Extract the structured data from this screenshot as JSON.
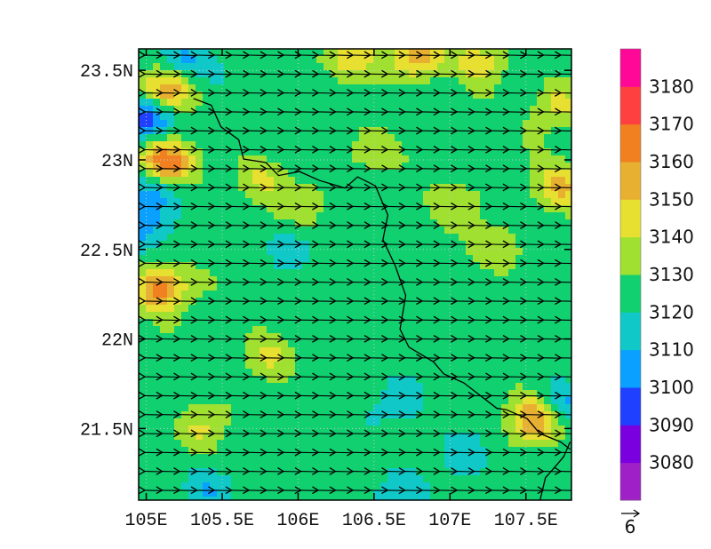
{
  "chart_data": {
    "type": "heatmap",
    "title": "",
    "xlabel": "",
    "ylabel": "",
    "xlim": [
      104.95,
      107.8
    ],
    "ylim": [
      21.1,
      23.62
    ],
    "x_ticks": [
      {
        "value": 105.0,
        "label": "105E"
      },
      {
        "value": 105.5,
        "label": "105.5E"
      },
      {
        "value": 106.0,
        "label": "106E"
      },
      {
        "value": 106.5,
        "label": "106.5E"
      },
      {
        "value": 107.0,
        "label": "107E"
      },
      {
        "value": 107.5,
        "label": "107.5E"
      }
    ],
    "y_ticks": [
      {
        "value": 21.5,
        "label": "21.5N"
      },
      {
        "value": 22.0,
        "label": "22N"
      },
      {
        "value": 22.5,
        "label": "22.5N"
      },
      {
        "value": 23.0,
        "label": "23N"
      },
      {
        "value": 23.5,
        "label": "23.5N"
      }
    ],
    "colorbar": {
      "levels": [
        3080,
        3090,
        3100,
        3110,
        3120,
        3130,
        3140,
        3150,
        3160,
        3170,
        3180
      ],
      "labels": [
        "3080",
        "3090",
        "3100",
        "3110",
        "3120",
        "3130",
        "3140",
        "3150",
        "3160",
        "3170",
        "3180"
      ],
      "colors": [
        "#a020c8",
        "#7a00e0",
        "#2040ff",
        "#0aa0ff",
        "#10c8c8",
        "#10d070",
        "#a0e030",
        "#e8e030",
        "#e8b030",
        "#f08020",
        "#ff4040",
        "#ff0898"
      ]
    },
    "field_base_value": 3125,
    "anomalies": [
      {
        "lon": 105.0,
        "lat": 23.25,
        "dv": -40
      },
      {
        "lon": 105.05,
        "lat": 22.85,
        "dv": -25
      },
      {
        "lon": 105.0,
        "lat": 22.65,
        "dv": -22
      },
      {
        "lon": 105.12,
        "lat": 22.98,
        "dv": 52
      },
      {
        "lon": 105.12,
        "lat": 23.38,
        "dv": 40
      },
      {
        "lon": 105.1,
        "lat": 22.28,
        "dv": 40
      },
      {
        "lon": 105.22,
        "lat": 23.55,
        "dv": -20
      },
      {
        "lon": 106.35,
        "lat": 23.58,
        "dv": 25
      },
      {
        "lon": 106.8,
        "lat": 23.58,
        "dv": 32
      },
      {
        "lon": 107.2,
        "lat": 23.55,
        "dv": 18
      },
      {
        "lon": 107.72,
        "lat": 22.85,
        "dv": 28
      },
      {
        "lon": 107.7,
        "lat": 23.3,
        "dv": 18
      },
      {
        "lon": 107.55,
        "lat": 21.55,
        "dv": 32
      },
      {
        "lon": 107.75,
        "lat": 21.65,
        "dv": -15
      },
      {
        "lon": 105.75,
        "lat": 22.9,
        "dv": 15
      },
      {
        "lon": 106.05,
        "lat": 22.75,
        "dv": 15
      },
      {
        "lon": 106.5,
        "lat": 23.05,
        "dv": 15
      },
      {
        "lon": 105.8,
        "lat": 21.9,
        "dv": 14
      },
      {
        "lon": 105.35,
        "lat": 21.5,
        "dv": 15
      },
      {
        "lon": 107.0,
        "lat": 22.75,
        "dv": 14
      },
      {
        "lon": 107.3,
        "lat": 22.5,
        "dv": 14
      },
      {
        "lon": 106.7,
        "lat": 21.65,
        "dv": -12
      },
      {
        "lon": 107.1,
        "lat": 21.35,
        "dv": -12
      },
      {
        "lon": 105.95,
        "lat": 22.5,
        "dv": -10
      },
      {
        "lon": 105.4,
        "lat": 21.15,
        "dv": -12
      },
      {
        "lon": 106.6,
        "lat": 21.15,
        "dv": -12
      }
    ],
    "wind_vectors": {
      "direction": "westward",
      "reference_vector": {
        "magnitude": 6,
        "label": "6"
      }
    },
    "border": [
      [
        105.32,
        23.35
      ],
      [
        105.42,
        23.3
      ],
      [
        105.5,
        23.18
      ],
      [
        105.6,
        23.12
      ],
      [
        105.65,
        23.0
      ],
      [
        105.78,
        22.98
      ],
      [
        105.88,
        22.92
      ],
      [
        106.0,
        22.93
      ],
      [
        106.15,
        22.88
      ],
      [
        106.3,
        22.85
      ],
      [
        106.4,
        22.9
      ],
      [
        106.5,
        22.85
      ],
      [
        106.6,
        22.7
      ],
      [
        106.55,
        22.55
      ],
      [
        106.65,
        22.4
      ],
      [
        106.7,
        22.25
      ],
      [
        106.68,
        22.05
      ],
      [
        106.72,
        21.95
      ],
      [
        106.9,
        21.88
      ],
      [
        106.95,
        21.8
      ],
      [
        107.1,
        21.75
      ],
      [
        107.3,
        21.62
      ],
      [
        107.38,
        21.6
      ],
      [
        107.5,
        21.55
      ],
      [
        107.6,
        21.48
      ],
      [
        107.72,
        21.42
      ],
      [
        107.8,
        21.38
      ]
    ],
    "coast": [
      [
        107.6,
        21.1
      ],
      [
        107.62,
        21.22
      ],
      [
        107.7,
        21.28
      ],
      [
        107.74,
        21.35
      ],
      [
        107.8,
        21.42
      ]
    ]
  }
}
